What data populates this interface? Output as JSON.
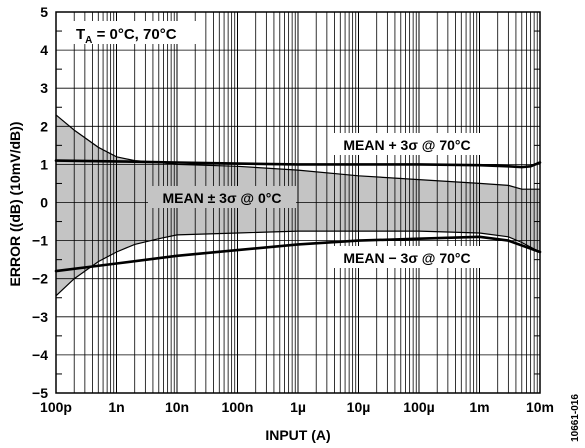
{
  "chart_data": {
    "type": "line",
    "title": "",
    "xlabel": "INPUT (A)",
    "ylabel": "ERROR ((dB) (10mV/dB))",
    "x_scale": "log",
    "xlim": [
      1e-10,
      0.01
    ],
    "ylim": [
      -5,
      5
    ],
    "grid": true,
    "x_ticks": [
      {
        "value": 1e-10,
        "label": "100p"
      },
      {
        "value": 1e-09,
        "label": "1n"
      },
      {
        "value": 1e-08,
        "label": "10n"
      },
      {
        "value": 1e-07,
        "label": "100n"
      },
      {
        "value": 1e-06,
        "label": "1µ"
      },
      {
        "value": 1e-05,
        "label": "10µ"
      },
      {
        "value": 0.0001,
        "label": "100µ"
      },
      {
        "value": 0.001,
        "label": "1m"
      },
      {
        "value": 0.01,
        "label": "10m"
      }
    ],
    "y_ticks": [
      {
        "value": 5,
        "label": "5"
      },
      {
        "value": 4,
        "label": "4"
      },
      {
        "value": 3,
        "label": "3"
      },
      {
        "value": 2,
        "label": "2"
      },
      {
        "value": 1,
        "label": "1"
      },
      {
        "value": 0,
        "label": "0"
      },
      {
        "value": -1,
        "label": "−1"
      },
      {
        "value": -2,
        "label": "−2"
      },
      {
        "value": -3,
        "label": "−3"
      },
      {
        "value": -4,
        "label": "−4"
      },
      {
        "value": -5,
        "label": "−5"
      }
    ],
    "conditions_label": {
      "prefix": "T",
      "subscript": "A",
      "suffix": " = 0°C, 70°C"
    },
    "band": {
      "label": "MEAN ± 3σ @ 0°C",
      "fill": "#c4c4c4",
      "upper": {
        "x": [
          1e-10,
          2e-10,
          5e-10,
          1e-09,
          2e-09,
          5e-09,
          1e-08,
          1e-07,
          1e-06,
          1e-05,
          0.0001,
          0.001,
          0.003,
          0.005,
          0.01
        ],
        "y": [
          2.3,
          1.9,
          1.45,
          1.2,
          1.1,
          1.05,
          1.0,
          0.95,
          0.85,
          0.7,
          0.6,
          0.5,
          0.45,
          0.35,
          0.35
        ]
      },
      "lower": {
        "x": [
          1e-10,
          2e-10,
          5e-10,
          1e-09,
          2e-09,
          5e-09,
          1e-08,
          1e-07,
          1e-06,
          1e-05,
          0.0001,
          0.001,
          0.003,
          0.005,
          0.01
        ],
        "y": [
          -2.45,
          -2.0,
          -1.55,
          -1.3,
          -1.1,
          -0.95,
          -0.85,
          -0.8,
          -0.75,
          -0.75,
          -0.75,
          -0.8,
          -0.9,
          -1.05,
          -1.3
        ]
      }
    },
    "series": [
      {
        "name": "MEAN + 3σ @ 70°C",
        "x": [
          1e-10,
          1e-09,
          1e-08,
          1e-07,
          1e-06,
          1e-05,
          0.0001,
          0.001,
          0.003,
          0.005,
          0.007,
          0.01
        ],
        "y": [
          1.1,
          1.08,
          1.05,
          1.02,
          1.0,
          1.0,
          1.0,
          0.98,
          0.95,
          0.93,
          0.95,
          1.05
        ]
      },
      {
        "name": "MEAN − 3σ @ 70°C",
        "x": [
          1e-10,
          1e-09,
          1e-08,
          1e-07,
          1e-06,
          1e-05,
          0.0001,
          0.001,
          0.003,
          0.01
        ],
        "y": [
          -1.8,
          -1.6,
          -1.4,
          -1.25,
          -1.1,
          -1.0,
          -0.95,
          -0.9,
          -1.0,
          -1.3
        ]
      }
    ],
    "figure_id": "10661-016"
  }
}
